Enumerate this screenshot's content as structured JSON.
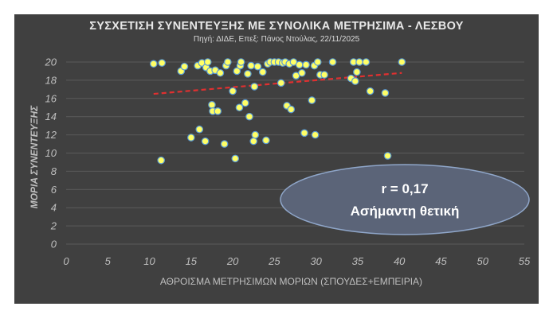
{
  "chart_data": {
    "type": "scatter",
    "title": "ΣΥΣΧΕΤΙΣΗ ΣΥΝΕΝΤΕΥΞΗΣ ΜΕ ΣΥΝΟΛΙΚΑ ΜΕΤΡΗΣΙΜΑ - ΛΕΣΒΟΥ",
    "subtitle": "Πηγή: ΔΙΔΕ, Επεξ: Πάνος Ντούλας, 22/11/2025",
    "xlabel": "ΑΘΡΟΙΣΜΑ ΜΕΤΡΗΣΙΜΩΝ ΜΟΡΙΩΝ (ΣΠΟΥΔΕΣ+ΕΜΠΕΙΡΙΑ)",
    "ylabel": "ΜΟΡΙΑ ΣΥΝΕΝΤΕΥΞΗΣ",
    "xlim": [
      0,
      55
    ],
    "ylim": [
      0,
      20
    ],
    "xticks": [
      "0",
      "5",
      "10",
      "15",
      "20",
      "25",
      "30",
      "35",
      "40",
      "45",
      "50",
      "55"
    ],
    "yticks": [
      "0",
      "2",
      "4",
      "6",
      "8",
      "10",
      "12",
      "14",
      "16",
      "18",
      "20"
    ],
    "grid": "horizontal",
    "point_color": "#ffff66",
    "point_edge": "#5b9bd5",
    "trendline": {
      "type": "linear",
      "color": "#e03030",
      "style": "dashed",
      "x": [
        10.5,
        40.3
      ],
      "y": [
        16.5,
        18.8
      ]
    },
    "points": [
      [
        10.5,
        19.8
      ],
      [
        11.4,
        9.2
      ],
      [
        11.5,
        19.9
      ],
      [
        13.8,
        19.0
      ],
      [
        14.2,
        19.5
      ],
      [
        15.0,
        11.7
      ],
      [
        15.8,
        19.6
      ],
      [
        16.0,
        12.6
      ],
      [
        16.3,
        19.9
      ],
      [
        16.8,
        19.4
      ],
      [
        16.7,
        11.3
      ],
      [
        17.0,
        20.0
      ],
      [
        17.3,
        19.0
      ],
      [
        17.5,
        15.3
      ],
      [
        17.6,
        14.6
      ],
      [
        17.9,
        19.1
      ],
      [
        18.2,
        14.6
      ],
      [
        18.5,
        18.8
      ],
      [
        19.2,
        19.6
      ],
      [
        19.0,
        11.0
      ],
      [
        19.4,
        20.0
      ],
      [
        20.0,
        16.8
      ],
      [
        20.3,
        9.4
      ],
      [
        20.5,
        19.0
      ],
      [
        20.8,
        15.0
      ],
      [
        20.9,
        19.6
      ],
      [
        21.0,
        20.0
      ],
      [
        21.5,
        15.5
      ],
      [
        21.8,
        18.7
      ],
      [
        22.0,
        14.0
      ],
      [
        22.2,
        19.6
      ],
      [
        22.5,
        11.3
      ],
      [
        22.6,
        17.3
      ],
      [
        22.7,
        12.0
      ],
      [
        23.0,
        19.5
      ],
      [
        23.6,
        18.9
      ],
      [
        24.0,
        11.4
      ],
      [
        24.2,
        19.8
      ],
      [
        24.5,
        20.0
      ],
      [
        25.0,
        20.0
      ],
      [
        25.5,
        20.0
      ],
      [
        25.8,
        17.7
      ],
      [
        26.0,
        19.9
      ],
      [
        26.3,
        20.0
      ],
      [
        26.5,
        15.2
      ],
      [
        26.8,
        19.8
      ],
      [
        27.0,
        14.8
      ],
      [
        27.3,
        20.0
      ],
      [
        27.6,
        18.5
      ],
      [
        28.0,
        19.7
      ],
      [
        28.3,
        18.8
      ],
      [
        28.6,
        12.2
      ],
      [
        28.8,
        19.7
      ],
      [
        29.5,
        15.8
      ],
      [
        29.8,
        19.6
      ],
      [
        29.9,
        12.0
      ],
      [
        30.2,
        20.0
      ],
      [
        30.5,
        18.6
      ],
      [
        31.0,
        18.6
      ],
      [
        32.0,
        20.0
      ],
      [
        34.2,
        18.2
      ],
      [
        34.5,
        20.0
      ],
      [
        34.7,
        17.9
      ],
      [
        34.9,
        18.9
      ],
      [
        35.2,
        20.0
      ],
      [
        36.0,
        20.0
      ],
      [
        36.5,
        16.8
      ],
      [
        38.3,
        16.6
      ],
      [
        38.6,
        9.7
      ],
      [
        40.3,
        20.0
      ]
    ],
    "annotation": {
      "lines": [
        "r = 0,17",
        "Ασήμαντη θετική"
      ]
    }
  }
}
